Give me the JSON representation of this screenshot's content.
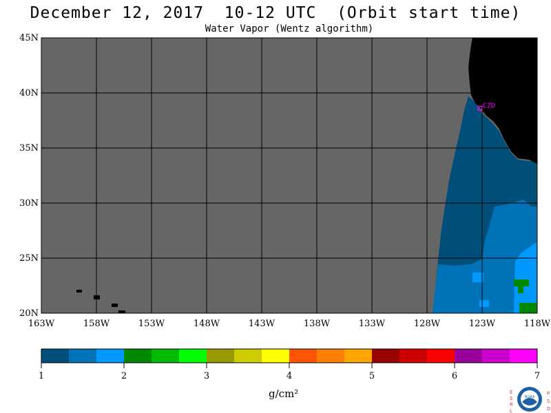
{
  "header": {
    "title": "December 12, 2017  10-12 UTC  (Orbit start time)",
    "subtitle": "Water Vapor (Wentz algorithm)"
  },
  "map": {
    "lat_labels": [
      "45N",
      "40N",
      "35N",
      "30N",
      "25N",
      "20N"
    ],
    "lon_labels": [
      "163W",
      "158W",
      "153W",
      "148W",
      "143W",
      "138W",
      "133W",
      "128W",
      "123W",
      "118W"
    ],
    "lat_range": [
      20,
      45
    ],
    "lon_range": [
      -163,
      -118
    ],
    "station": {
      "code": "CZD",
      "lat": 38.6,
      "lon": -123.2
    },
    "colors": {
      "no_data": "#666666",
      "land": "#000000",
      "grid": "#000000",
      "station_marker": "#ff00ff"
    }
  },
  "legend": {
    "tick_labels": [
      "1",
      "2",
      "3",
      "4",
      "5",
      "6",
      "7"
    ],
    "unit": "g/cm²",
    "range": [
      1,
      7
    ],
    "colors": [
      "#004f7a",
      "#0072b8",
      "#0099ff",
      "#008800",
      "#00bb00",
      "#00ff00",
      "#999900",
      "#cccc00",
      "#ffff00",
      "#ff5500",
      "#ff7f00",
      "#ffa500",
      "#990000",
      "#cc0000",
      "#ff0000",
      "#990099",
      "#cc00cc",
      "#ff00ff"
    ]
  },
  "logo": {
    "left_letters": "ESRL",
    "right_letters": "PSD",
    "emblem_text": "NOAA"
  }
}
